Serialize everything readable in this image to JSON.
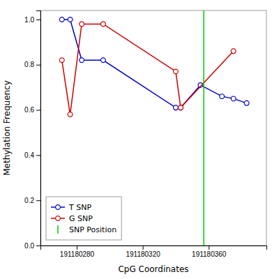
{
  "chart_data": {
    "type": "line",
    "xlabel": "CpG Coordinates",
    "ylabel": "Methylation Frequency",
    "series": [
      {
        "name": "T SNP",
        "color": "#0000cc",
        "marker": "circle",
        "x": [
          191180271,
          191180276,
          191180283,
          191180296,
          191180340,
          191180343,
          191180355,
          191180368,
          191180375,
          191180383
        ],
        "values": [
          1.0,
          1.0,
          0.82,
          0.82,
          0.61,
          0.61,
          0.71,
          0.66,
          0.65,
          0.63
        ]
      },
      {
        "name": "G SNP",
        "color": "#cc0000",
        "marker": "circle",
        "x": [
          191180271,
          191180276,
          191180283,
          191180296,
          191180340,
          191180343,
          191180375
        ],
        "values": [
          0.82,
          0.58,
          0.98,
          0.98,
          0.77,
          0.61,
          0.86
        ]
      },
      {
        "name": "SNP Position",
        "type": "vline",
        "color": "#00cc00",
        "x": [
          191180357
        ]
      }
    ],
    "xlim": [
      191180258,
      191180395
    ],
    "xticks": [
      191180280,
      191180320,
      191180360
    ],
    "ylim": [
      0.0,
      1.04
    ],
    "yticks": [
      {
        "value": 0.0,
        "label": "0.0"
      },
      0.2,
      0.4,
      0.6,
      0.8,
      {
        "value": 1.0,
        "label": "1.0"
      }
    ],
    "grid": false,
    "legend": "lower left"
  }
}
